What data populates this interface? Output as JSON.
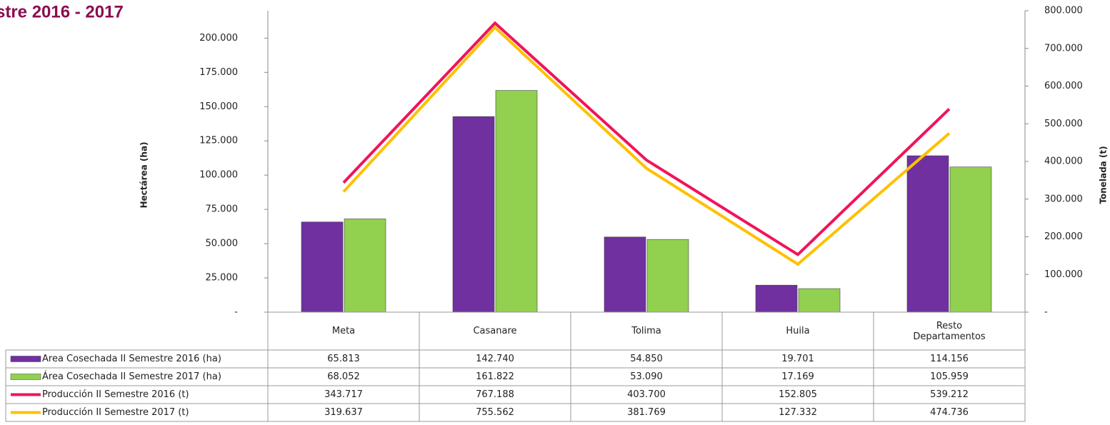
{
  "chart_data": {
    "type": "bar",
    "title": "stre 2016 - 2017",
    "ylabel": "Hectárea (ha)",
    "y2label": "Tonelada (t)",
    "categories": [
      "Meta",
      "Casanare",
      "Tolima",
      "Huila",
      "Resto Departamentos"
    ],
    "ylim": [
      0,
      220000
    ],
    "yticks": [
      {
        "value": 0,
        "label": "-"
      },
      {
        "value": 25000,
        "label": "25.000"
      },
      {
        "value": 50000,
        "label": "50.000"
      },
      {
        "value": 75000,
        "label": "75.000"
      },
      {
        "value": 100000,
        "label": "100.000"
      },
      {
        "value": 125000,
        "label": "125.000"
      },
      {
        "value": 150000,
        "label": "150.000"
      },
      {
        "value": 175000,
        "label": "175.000"
      },
      {
        "value": 200000,
        "label": "200.000"
      }
    ],
    "y2lim": [
      0,
      800000
    ],
    "y2ticks": [
      {
        "value": 0,
        "label": "-"
      },
      {
        "value": 100000,
        "label": "100.000"
      },
      {
        "value": 200000,
        "label": "200.000"
      },
      {
        "value": 300000,
        "label": "300.000"
      },
      {
        "value": 400000,
        "label": "400.000"
      },
      {
        "value": 500000,
        "label": "500.000"
      },
      {
        "value": 600000,
        "label": "600.000"
      },
      {
        "value": 700000,
        "label": "700.000"
      },
      {
        "value": 800000,
        "label": "800.000"
      }
    ],
    "series": [
      {
        "name": "Area Cosechada II Semestre 2016 (ha)",
        "type": "bar",
        "color": "#7030a0",
        "values": [
          65813,
          142740,
          54850,
          19701,
          114156
        ],
        "value_labels": [
          "65.813",
          "142.740",
          "54.850",
          "19.701",
          "114.156"
        ]
      },
      {
        "name": "Área Cosechada II Semestre 2017 (ha)",
        "type": "bar",
        "color": "#92d050",
        "values": [
          68052,
          161822,
          53090,
          17169,
          105959
        ],
        "value_labels": [
          "68.052",
          "161.822",
          "53.090",
          "17.169",
          "105.959"
        ]
      },
      {
        "name": "Producción II Semestre 2016 (t)",
        "type": "line",
        "axis": "y2",
        "color": "#f0145a",
        "values": [
          343717,
          767188,
          403700,
          152805,
          539212
        ],
        "value_labels": [
          "343.717",
          "767.188",
          "403.700",
          "152.805",
          "539.212"
        ]
      },
      {
        "name": "Producción II Semestre 2017 (t)",
        "type": "line",
        "axis": "y2",
        "color": "#ffc000",
        "values": [
          319637,
          755562,
          381769,
          127332,
          474736
        ],
        "value_labels": [
          "319.637",
          "755.562",
          "381.769",
          "127.332",
          "474.736"
        ]
      }
    ]
  }
}
